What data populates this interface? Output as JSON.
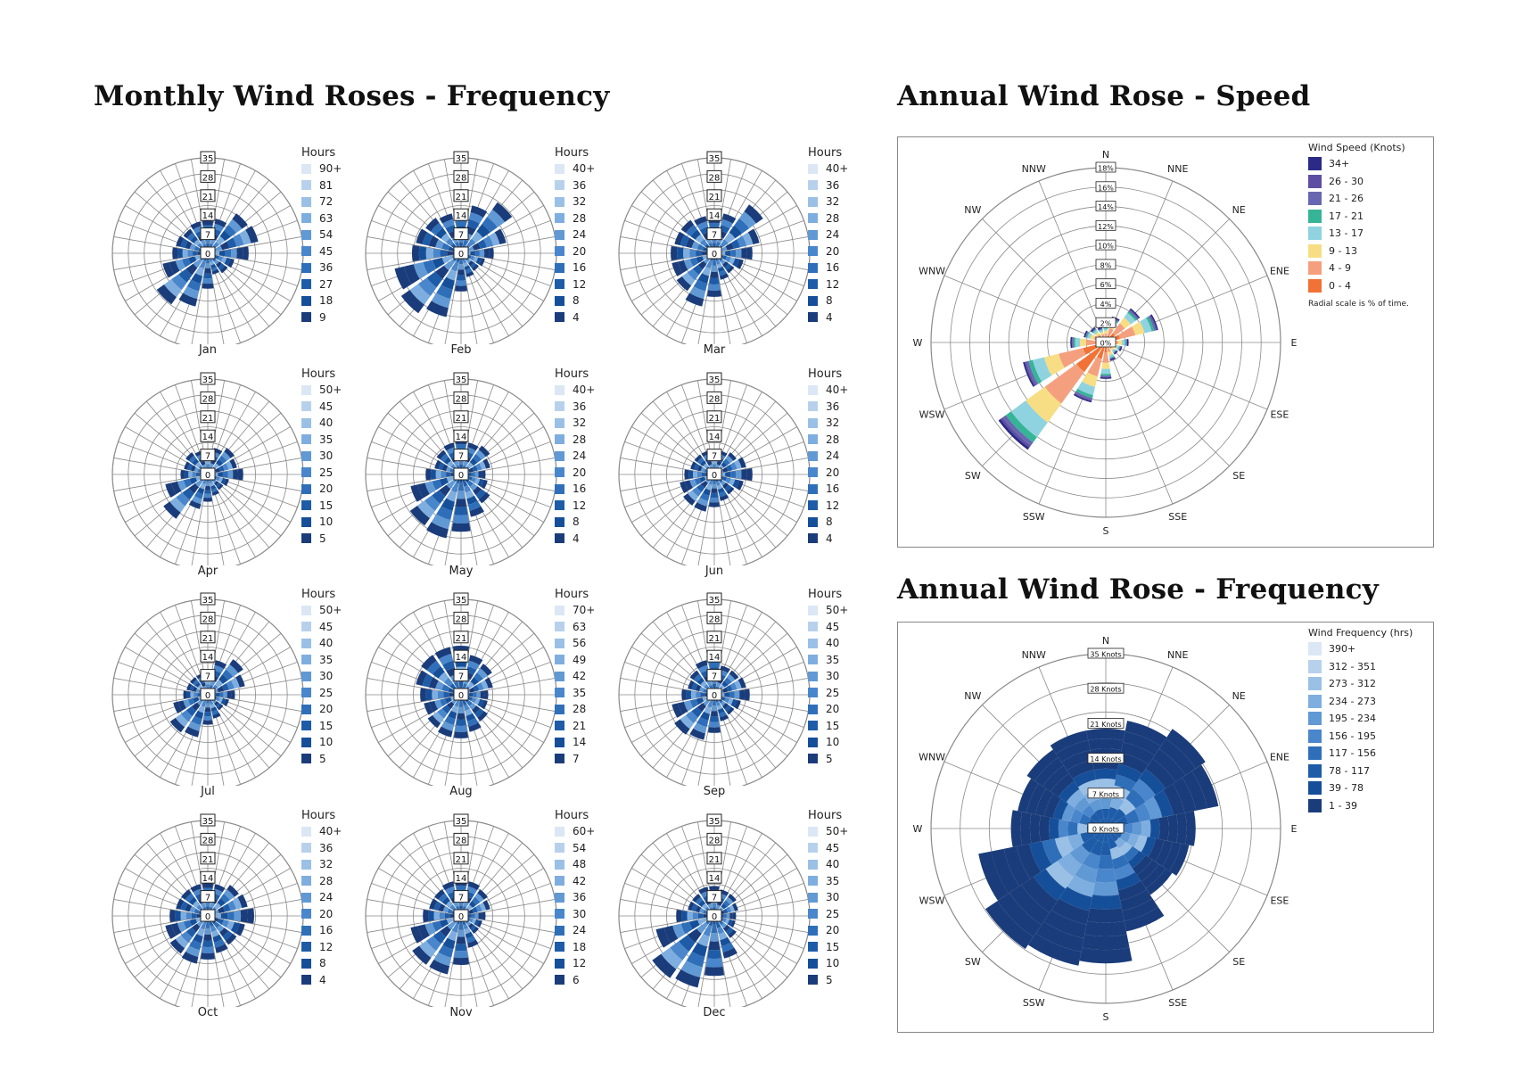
{
  "headings": {
    "monthly": "Monthly Wind Roses - Frequency",
    "annual_speed": "Annual Wind Rose - Speed",
    "annual_frequency": "Annual Wind Rose - Frequency"
  },
  "colors": {
    "grid": "#8a8a8a",
    "blues": [
      "#dbe7f5",
      "#b7d1ec",
      "#9ac0e6",
      "#7eaedf",
      "#6199d4",
      "#4a86cb",
      "#2f6fb9",
      "#1e5ca8",
      "#164f99",
      "#1a3c7a"
    ],
    "speed": [
      "#2b2a86",
      "#5e4ea3",
      "#6767b1",
      "#36b497",
      "#8fd3e0",
      "#f7de84",
      "#f4a07e",
      "#f17236"
    ]
  },
  "chart_data": [
    {
      "type": "wind-rose",
      "label": "Jan",
      "legend_title": "Hours",
      "legend": [
        "90+",
        "81",
        "72",
        "63",
        "54",
        "45",
        "36",
        "27",
        "18",
        "9"
      ],
      "radial_ticks": [
        "0",
        "7",
        "14",
        "21",
        "28",
        "35"
      ],
      "petals": [
        12,
        13,
        18,
        19,
        15,
        10,
        9,
        8,
        13,
        20,
        23,
        17,
        13,
        12,
        11,
        12
      ]
    },
    {
      "type": "wind-rose",
      "label": "Feb",
      "legend_title": "Hours",
      "legend": [
        "40+",
        "36",
        "32",
        "28",
        "24",
        "20",
        "16",
        "12",
        "8",
        "4"
      ],
      "radial_ticks": [
        "0",
        "7",
        "14",
        "21",
        "28",
        "35"
      ],
      "petals": [
        14,
        18,
        23,
        17,
        12,
        9,
        8,
        9,
        14,
        24,
        27,
        25,
        18,
        17,
        16,
        15
      ]
    },
    {
      "type": "wind-rose",
      "label": "Mar",
      "legend_title": "Hours",
      "legend": [
        "40+",
        "36",
        "32",
        "28",
        "24",
        "20",
        "16",
        "12",
        "8",
        "4"
      ],
      "radial_ticks": [
        "0",
        "7",
        "14",
        "21",
        "28",
        "35"
      ],
      "petals": [
        13,
        15,
        22,
        17,
        14,
        11,
        9,
        10,
        16,
        20,
        17,
        16,
        16,
        15,
        15,
        14
      ]
    },
    {
      "type": "wind-rose",
      "label": "Apr",
      "legend_title": "Hours",
      "legend": [
        "50+",
        "45",
        "40",
        "35",
        "30",
        "25",
        "20",
        "15",
        "10",
        "5"
      ],
      "radial_ticks": [
        "0",
        "7",
        "14",
        "21",
        "28",
        "35"
      ],
      "petals": [
        9,
        10,
        12,
        11,
        13,
        8,
        7,
        8,
        10,
        13,
        20,
        16,
        10,
        9,
        10,
        9
      ]
    },
    {
      "type": "wind-rose",
      "label": "May",
      "legend_title": "Hours",
      "legend": [
        "40+",
        "36",
        "32",
        "28",
        "24",
        "20",
        "16",
        "12",
        "8",
        "4"
      ],
      "radial_ticks": [
        "0",
        "7",
        "14",
        "21",
        "28",
        "35"
      ],
      "petals": [
        13,
        12,
        13,
        11,
        9,
        10,
        13,
        16,
        21,
        24,
        23,
        19,
        13,
        10,
        11,
        12
      ]
    },
    {
      "type": "wind-rose",
      "label": "Jun",
      "legend_title": "Hours",
      "legend": [
        "40+",
        "36",
        "32",
        "28",
        "24",
        "20",
        "16",
        "12",
        "8",
        "4"
      ],
      "radial_ticks": [
        "0",
        "7",
        "14",
        "21",
        "28",
        "35"
      ],
      "petals": [
        9,
        9,
        10,
        12,
        14,
        11,
        9,
        10,
        12,
        14,
        14,
        13,
        11,
        9,
        9,
        9
      ]
    },
    {
      "type": "wind-rose",
      "label": "Jul",
      "legend_title": "Hours",
      "legend": [
        "50+",
        "45",
        "40",
        "35",
        "30",
        "25",
        "20",
        "15",
        "10",
        "5"
      ],
      "radial_ticks": [
        "0",
        "7",
        "14",
        "21",
        "28",
        "35"
      ],
      "petals": [
        9,
        13,
        16,
        14,
        10,
        8,
        7,
        9,
        11,
        16,
        17,
        13,
        9,
        8,
        8,
        8
      ]
    },
    {
      "type": "wind-rose",
      "label": "Aug",
      "legend_title": "Hours",
      "legend": [
        "70+",
        "63",
        "56",
        "49",
        "42",
        "35",
        "28",
        "21",
        "14",
        "7"
      ],
      "radial_ticks": [
        "0",
        "7",
        "14",
        "21",
        "28",
        "35"
      ],
      "petals": [
        18,
        15,
        14,
        12,
        10,
        10,
        12,
        14,
        16,
        16,
        15,
        14,
        15,
        17,
        18,
        18
      ]
    },
    {
      "type": "wind-rose",
      "label": "Sep",
      "legend_title": "Hours",
      "legend": [
        "50+",
        "45",
        "40",
        "35",
        "30",
        "25",
        "20",
        "15",
        "10",
        "5"
      ],
      "radial_ticks": [
        "0",
        "7",
        "14",
        "21",
        "28",
        "35"
      ],
      "petals": [
        14,
        11,
        11,
        12,
        13,
        10,
        9,
        10,
        14,
        17,
        18,
        16,
        12,
        10,
        11,
        13
      ]
    },
    {
      "type": "wind-rose",
      "label": "Oct",
      "legend_title": "Hours",
      "legend": [
        "40+",
        "36",
        "32",
        "28",
        "24",
        "20",
        "16",
        "12",
        "8",
        "4"
      ],
      "radial_ticks": [
        "0",
        "7",
        "14",
        "21",
        "28",
        "35"
      ],
      "petals": [
        12,
        12,
        14,
        15,
        17,
        14,
        13,
        14,
        16,
        18,
        17,
        16,
        14,
        12,
        12,
        12
      ]
    },
    {
      "type": "wind-rose",
      "label": "Nov",
      "legend_title": "Hours",
      "legend": [
        "60+",
        "54",
        "48",
        "42",
        "36",
        "30",
        "24",
        "18",
        "12",
        "6"
      ],
      "radial_ticks": [
        "0",
        "7",
        "14",
        "21",
        "28",
        "35"
      ],
      "petals": [
        13,
        13,
        12,
        11,
        9,
        8,
        8,
        12,
        18,
        22,
        22,
        19,
        14,
        12,
        12,
        13
      ]
    },
    {
      "type": "wind-rose",
      "label": "Dec",
      "legend_title": "Hours",
      "legend": [
        "50+",
        "45",
        "40",
        "35",
        "30",
        "25",
        "20",
        "15",
        "10",
        "5"
      ],
      "radial_ticks": [
        "0",
        "7",
        "14",
        "21",
        "28",
        "35"
      ],
      "petals": [
        11,
        10,
        10,
        9,
        8,
        8,
        10,
        16,
        22,
        27,
        28,
        22,
        14,
        10,
        10,
        11
      ]
    },
    {
      "type": "wind-rose",
      "label": "Annual Wind Rose - Speed",
      "legend_title": "Wind Speed (Knots)",
      "legend": [
        "34+",
        "26 - 30",
        "21 - 26",
        "17 - 21",
        "13 - 17",
        "9 - 13",
        "4 - 9",
        "0 - 4"
      ],
      "note": "Radial scale is % of time.",
      "radial_ticks": [
        "0%",
        "2%",
        "4%",
        "6%",
        "8%",
        "10%",
        "12%",
        "14%",
        "16%",
        "18%"
      ],
      "directions": [
        "N",
        "NNE",
        "NE",
        "ENE",
        "E",
        "ESE",
        "SE",
        "SSE",
        "S",
        "SSW",
        "SW",
        "WSW",
        "W",
        "WNW",
        "NW",
        "NNW"
      ],
      "petals_percent": [
        1.6,
        2.6,
        4.2,
        5.4,
        2.2,
        1.6,
        1.4,
        1.8,
        3.6,
        6.2,
        13.4,
        8.6,
        3.5,
        2.2,
        1.8,
        1.5
      ]
    },
    {
      "type": "wind-rose",
      "label": "Annual Wind Rose - Frequency",
      "legend_title": "Wind Frequency (hrs)",
      "legend": [
        "390+",
        "312 - 351",
        "273 - 312",
        "234 - 273",
        "195 - 234",
        "156 - 195",
        "117 - 156",
        "78 - 117",
        "39 - 78",
        "1 - 39"
      ],
      "radial_ticks": [
        "0 Knots",
        "7 Knots",
        "14 Knots",
        "21 Knots",
        "28 Knots",
        "35 Knots"
      ],
      "directions": [
        "N",
        "NNE",
        "NE",
        "ENE",
        "E",
        "ESE",
        "SE",
        "SSE",
        "S",
        "SSW",
        "SW",
        "WSW",
        "W",
        "WNW",
        "NW",
        "NNW"
      ],
      "petals_knots": [
        20,
        22,
        24,
        23,
        18,
        17,
        16,
        21,
        27,
        28,
        29,
        26,
        19,
        18,
        19,
        20
      ]
    }
  ]
}
